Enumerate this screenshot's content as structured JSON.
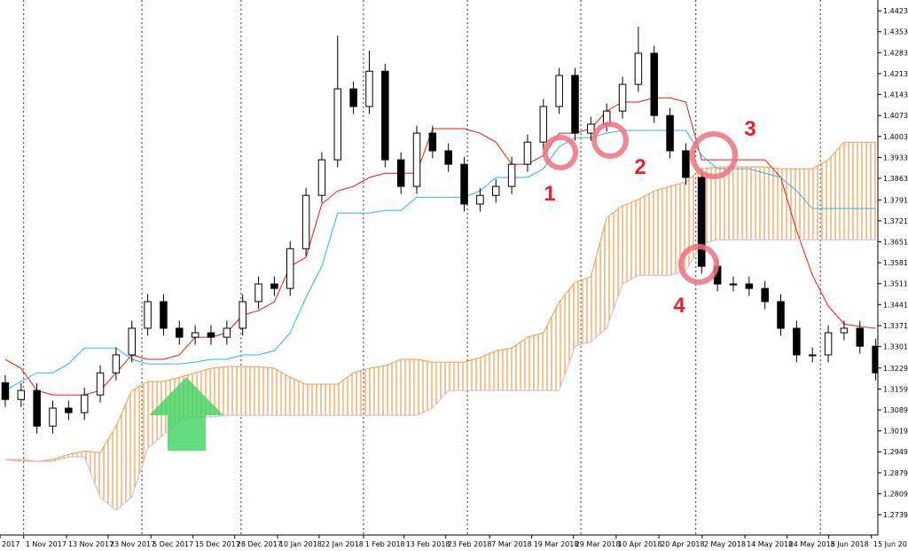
{
  "chart_data": {
    "type": "candlestick",
    "x": [
      1,
      4,
      7,
      10,
      13,
      16,
      19,
      22,
      25,
      28,
      31,
      34,
      37,
      40,
      43,
      46,
      49,
      52,
      55,
      58,
      61,
      64,
      67,
      70,
      73,
      76,
      79,
      82,
      85,
      88,
      91,
      94,
      97,
      100,
      103,
      106,
      109,
      112,
      115,
      118,
      121,
      124,
      127,
      130,
      133,
      136,
      139,
      142,
      145,
      148,
      151,
      154,
      157,
      160,
      163,
      166
    ],
    "open": [
      1.318,
      1.3124,
      1.3154,
      1.3035,
      1.3095,
      1.308,
      1.3139,
      1.3213,
      1.3273,
      1.3362,
      1.3451,
      1.3362,
      1.3332,
      1.3347,
      1.3332,
      1.3362,
      1.3451,
      1.351,
      1.3495,
      1.3628,
      1.3806,
      1.3925,
      1.4162,
      1.4103,
      1.4221,
      1.3925,
      1.3836,
      1.4014,
      1.3955,
      1.391,
      1.3777,
      1.3806,
      1.3836,
      1.391,
      1.3984,
      1.4103,
      1.4207,
      1.4014,
      1.4044,
      1.4088,
      1.4177,
      1.4281,
      1.4073,
      1.3955,
      1.3866,
      1.3569,
      1.351,
      1.351,
      1.3495,
      1.3451,
      1.3362,
      1.3273,
      1.3273,
      1.3347,
      1.3362,
      1.3302
    ],
    "high": [
      1.3205,
      1.3179,
      1.3179,
      1.312,
      1.312,
      1.3164,
      1.3238,
      1.3298,
      1.3387,
      1.3476,
      1.3476,
      1.3387,
      1.3372,
      1.3372,
      1.3387,
      1.3476,
      1.3535,
      1.3535,
      1.3653,
      1.3831,
      1.395,
      1.434,
      1.4187,
      1.429,
      1.4246,
      1.395,
      1.4039,
      1.4039,
      1.398,
      1.3935,
      1.3831,
      1.3861,
      1.3935,
      1.4009,
      1.4128,
      1.4232,
      1.4232,
      1.4069,
      1.4113,
      1.4202,
      1.437,
      1.4306,
      1.4098,
      1.398,
      1.3891,
      1.3594,
      1.3535,
      1.3535,
      1.352,
      1.3476,
      1.3387,
      1.3298,
      1.3372,
      1.3387,
      1.3387,
      1.3327
    ],
    "low": [
      1.3099,
      1.3099,
      1.301,
      1.301,
      1.3055,
      1.3055,
      1.3114,
      1.3188,
      1.3248,
      1.3337,
      1.3337,
      1.3307,
      1.3307,
      1.3307,
      1.3307,
      1.3337,
      1.3426,
      1.347,
      1.347,
      1.3603,
      1.3781,
      1.39,
      1.4078,
      1.4078,
      1.39,
      1.3811,
      1.3811,
      1.393,
      1.3885,
      1.3752,
      1.3752,
      1.3781,
      1.3811,
      1.3885,
      1.3959,
      1.4078,
      1.3989,
      1.3989,
      1.4019,
      1.4063,
      1.4152,
      1.4048,
      1.393,
      1.3841,
      1.3544,
      1.3485,
      1.3485,
      1.347,
      1.3426,
      1.3337,
      1.3248,
      1.3248,
      1.3248,
      1.3322,
      1.3277,
      1.3188
    ],
    "close": [
      1.3124,
      1.3154,
      1.3035,
      1.3095,
      1.308,
      1.3139,
      1.3213,
      1.3273,
      1.3362,
      1.3451,
      1.3362,
      1.3332,
      1.3347,
      1.3332,
      1.3362,
      1.3451,
      1.351,
      1.3495,
      1.3628,
      1.3806,
      1.3925,
      1.4162,
      1.4103,
      1.4221,
      1.3925,
      1.3836,
      1.4014,
      1.3955,
      1.391,
      1.3777,
      1.3806,
      1.3836,
      1.391,
      1.3984,
      1.4103,
      1.4207,
      1.4014,
      1.4044,
      1.4088,
      1.4177,
      1.4281,
      1.4073,
      1.3955,
      1.3866,
      1.3569,
      1.351,
      1.351,
      1.3495,
      1.3451,
      1.3362,
      1.3273,
      1.3273,
      1.3347,
      1.3362,
      1.3302,
      1.3213
    ],
    "up_color": "#ffffff",
    "down_color": "#000000",
    "series": [
      {
        "color": "#e8190f",
        "values": [
          1.3258,
          1.3228,
          1.3154,
          1.3139,
          1.3139,
          1.3139,
          1.3154,
          1.3213,
          1.3273,
          1.3258,
          1.3258,
          1.3273,
          1.3332,
          1.3332,
          1.3347,
          1.3406,
          1.3421,
          1.345,
          1.3569,
          1.3599,
          1.3777,
          1.3821,
          1.3836,
          1.3866,
          1.388,
          1.388,
          1.388,
          1.4029,
          1.4029,
          1.4029,
          1.4014,
          1.3984,
          1.391,
          1.391,
          1.394,
          1.4014,
          1.4014,
          1.4029,
          1.4088,
          1.4118,
          1.4118,
          1.4132,
          1.4132,
          1.4118,
          1.3925,
          1.3925,
          1.3925,
          1.3925,
          1.3925,
          1.3866,
          1.3688,
          1.3539,
          1.3436,
          1.3376,
          1.3368,
          1.3362
        ]
      },
      {
        "color": "#29b6e8",
        "values": [
          1.3154,
          1.3184,
          1.3213,
          1.3213,
          1.3243,
          1.3296,
          1.3296,
          1.3296,
          1.3258,
          1.3243,
          1.3243,
          1.3243,
          1.3249,
          1.3258,
          1.3258,
          1.3273,
          1.3273,
          1.3287,
          1.3347,
          1.3465,
          1.3569,
          1.3747,
          1.3747,
          1.3747,
          1.3756,
          1.3756,
          1.38,
          1.38,
          1.38,
          1.38,
          1.3821,
          1.3866,
          1.3866,
          1.3866,
          1.3895,
          1.3969,
          1.3999,
          1.3999,
          1.4014,
          1.4023,
          1.4023,
          1.4023,
          1.4023,
          1.4023,
          1.394,
          1.3895,
          1.3895,
          1.3895,
          1.388,
          1.3866,
          1.3821,
          1.3762,
          1.3762,
          1.3762,
          1.3762,
          1.3762
        ]
      },
      {
        "color": "#f29a4a",
        "cloud_color": "#f29a4a",
        "values": [
          1.2923,
          1.2923,
          1.2917,
          1.2923,
          1.294,
          1.2952,
          1.2946,
          1.3035,
          1.3154,
          1.3184,
          1.3184,
          1.3198,
          1.3213,
          1.3228,
          1.3234,
          1.3234,
          1.3234,
          1.3228,
          1.3198,
          1.3175,
          1.3175,
          1.3175,
          1.3213,
          1.3228,
          1.3237,
          1.3258,
          1.3258,
          1.3249,
          1.3249,
          1.3249,
          1.3264,
          1.3287,
          1.3296,
          1.3332,
          1.3347,
          1.345,
          1.3516,
          1.3534,
          1.3732,
          1.3771,
          1.3792,
          1.3821,
          1.3836,
          1.3851,
          1.3895,
          1.3901,
          1.3901,
          1.3901,
          1.3901,
          1.3895,
          1.3895,
          1.3895,
          1.3925,
          1.3984,
          1.3984,
          1.3984
        ]
      },
      {
        "color": "#d4b4d8",
        "values": [
          1.2923,
          1.2917,
          1.2917,
          1.2917,
          1.2932,
          1.2932,
          1.2798,
          1.2754,
          1.2798,
          1.2961,
          1.3006,
          1.305,
          1.3065,
          1.3065,
          1.3071,
          1.3071,
          1.3071,
          1.3071,
          1.3071,
          1.3071,
          1.3071,
          1.3071,
          1.3071,
          1.3071,
          1.3071,
          1.3071,
          1.3071,
          1.3095,
          1.3154,
          1.3154,
          1.3154,
          1.3154,
          1.3154,
          1.3154,
          1.3154,
          1.3154,
          1.3302,
          1.3317,
          1.3362,
          1.351,
          1.3539,
          1.3539,
          1.3539,
          1.3554,
          1.3643,
          1.3658,
          1.3658,
          1.3658,
          1.3658,
          1.3658,
          1.3658,
          1.3658,
          1.3658,
          1.3658,
          1.3658,
          1.3658
        ]
      }
    ],
    "xlim": [
      0,
      166.4
    ],
    "ylim": [
      1.2671,
      1.4459
    ],
    "separators": [
      4.5,
      26.9,
      45.7,
      68.9,
      88.6,
      110.1,
      131.9,
      155.5
    ],
    "xticks": [
      {
        "value": 0,
        "label": "2017"
      },
      {
        "value": 4.5,
        "label": "1 Nov 2017"
      },
      {
        "value": 12.6,
        "label": "13 Nov 2017"
      },
      {
        "value": 20.5,
        "label": "23 Nov 2017"
      },
      {
        "value": 28.6,
        "label": "5 Dec 2017"
      },
      {
        "value": 36.6,
        "label": "15 Dec 2017"
      },
      {
        "value": 44.5,
        "label": "28 Dec 2017"
      },
      {
        "value": 52.6,
        "label": "10 Jan 2018"
      },
      {
        "value": 60.5,
        "label": "22 Jan 2018"
      },
      {
        "value": 68.9,
        "label": "1 Feb 2018"
      },
      {
        "value": 76.6,
        "label": "13 Feb 2018"
      },
      {
        "value": 84.5,
        "label": "23 Feb 2018"
      },
      {
        "value": 92.8,
        "label": "7 Mar 2018"
      },
      {
        "value": 100.8,
        "label": "19 Mar 2018"
      },
      {
        "value": 108.7,
        "label": "29 Mar 2018"
      },
      {
        "value": 116.8,
        "label": "10 Apr 2018"
      },
      {
        "value": 124.9,
        "label": "20 Apr 2018"
      },
      {
        "value": 133.1,
        "label": "2 May 2018"
      },
      {
        "value": 141.2,
        "label": "14 May 2018"
      },
      {
        "value": 149.2,
        "label": "24 May 2018"
      },
      {
        "value": 157.1,
        "label": "5 Jun 2018"
      },
      {
        "value": 165.2,
        "label": "15 Jun 2018"
      }
    ],
    "yticks": [
      {
        "value": 1.4423,
        "label": "1.44230"
      },
      {
        "value": 1.4353,
        "label": "1.43530"
      },
      {
        "value": 1.4283,
        "label": "1.42830"
      },
      {
        "value": 1.4213,
        "label": "1.42130"
      },
      {
        "value": 1.4143,
        "label": "1.41430"
      },
      {
        "value": 1.4073,
        "label": "1.40730"
      },
      {
        "value": 1.4003,
        "label": "1.40030"
      },
      {
        "value": 1.3933,
        "label": "1.39330"
      },
      {
        "value": 1.3863,
        "label": "1.38630"
      },
      {
        "value": 1.3791,
        "label": "1.37910"
      },
      {
        "value": 1.3721,
        "label": "1.37210"
      },
      {
        "value": 1.3651,
        "label": "1.36510"
      },
      {
        "value": 1.3581,
        "label": "1.35810"
      },
      {
        "value": 1.3511,
        "label": "1.35110"
      },
      {
        "value": 1.3441,
        "label": "1.34410"
      },
      {
        "value": 1.3371,
        "label": "1.33710"
      },
      {
        "value": 1.3301,
        "label": "1.33010"
      },
      {
        "value": 1.3229,
        "label": "1.32290"
      },
      {
        "value": 1.3159,
        "label": "1.31590"
      },
      {
        "value": 1.3089,
        "label": "1.30890"
      },
      {
        "value": 1.3019,
        "label": "1.30190"
      },
      {
        "value": 1.2949,
        "label": "1.29490"
      },
      {
        "value": 1.2879,
        "label": "1.28790"
      },
      {
        "value": 1.2809,
        "label": "1.28090"
      },
      {
        "value": 1.2739,
        "label": "1.27390"
      }
    ],
    "annotations": [
      {
        "text": "1",
        "color": "#e8202a",
        "circle_color": "#f07080"
      },
      {
        "text": "2",
        "color": "#e8202a",
        "circle_color": "#f07080"
      },
      {
        "text": "3",
        "color": "#e8202a",
        "circle_color": "#f07080"
      },
      {
        "text": "4",
        "color": "#e8202a",
        "circle_color": "#f07080"
      }
    ]
  }
}
